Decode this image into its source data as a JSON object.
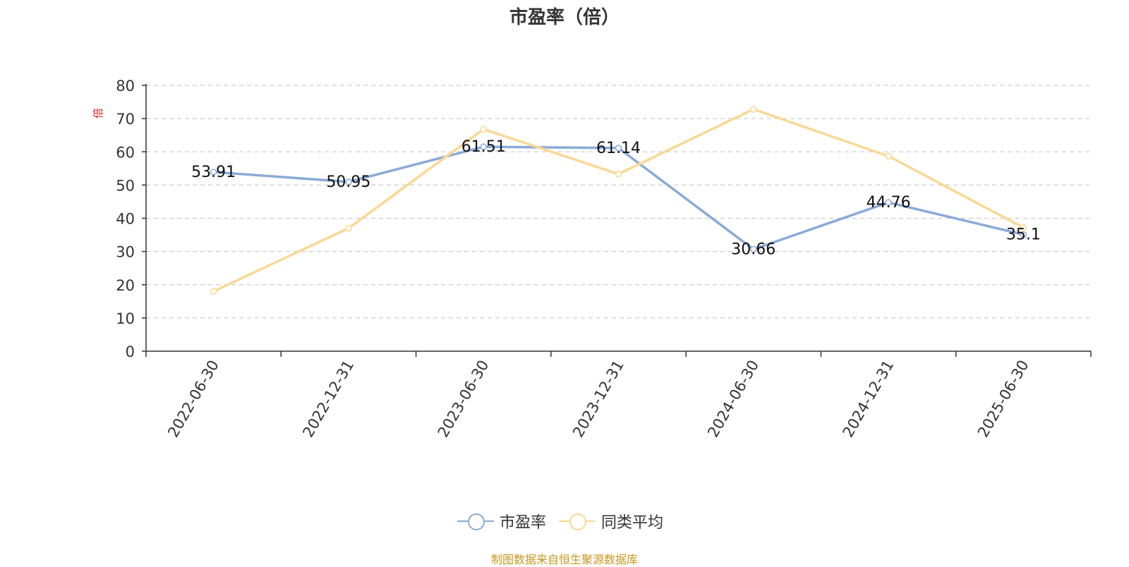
{
  "chart_data": {
    "type": "line",
    "title": "市盈率（倍）",
    "ylabel": "倍",
    "ylim": [
      0,
      80
    ],
    "yticks": [
      0,
      10,
      20,
      30,
      40,
      50,
      60,
      70,
      80
    ],
    "grid": true,
    "legend_position": "bottom-center",
    "categories": [
      "2022-06-30",
      "2022-12-31",
      "2023-06-30",
      "2023-12-31",
      "2024-06-30",
      "2024-12-31",
      "2025-06-30"
    ],
    "series": [
      {
        "name": "市盈率",
        "color": "#8aaad8",
        "values": [
          53.91,
          50.95,
          61.51,
          61.14,
          30.66,
          44.76,
          35.1
        ],
        "labels": [
          "53.91",
          "50.95",
          "61.51",
          "61.14",
          "30.66",
          "44.76",
          "35.1"
        ]
      },
      {
        "name": "同类平均",
        "color": "#f9d894",
        "values": [
          18.0,
          37.0,
          66.8,
          53.3,
          72.8,
          58.7,
          37.2
        ]
      }
    ]
  },
  "source_text": "制图数据来自恒生聚源数据库"
}
